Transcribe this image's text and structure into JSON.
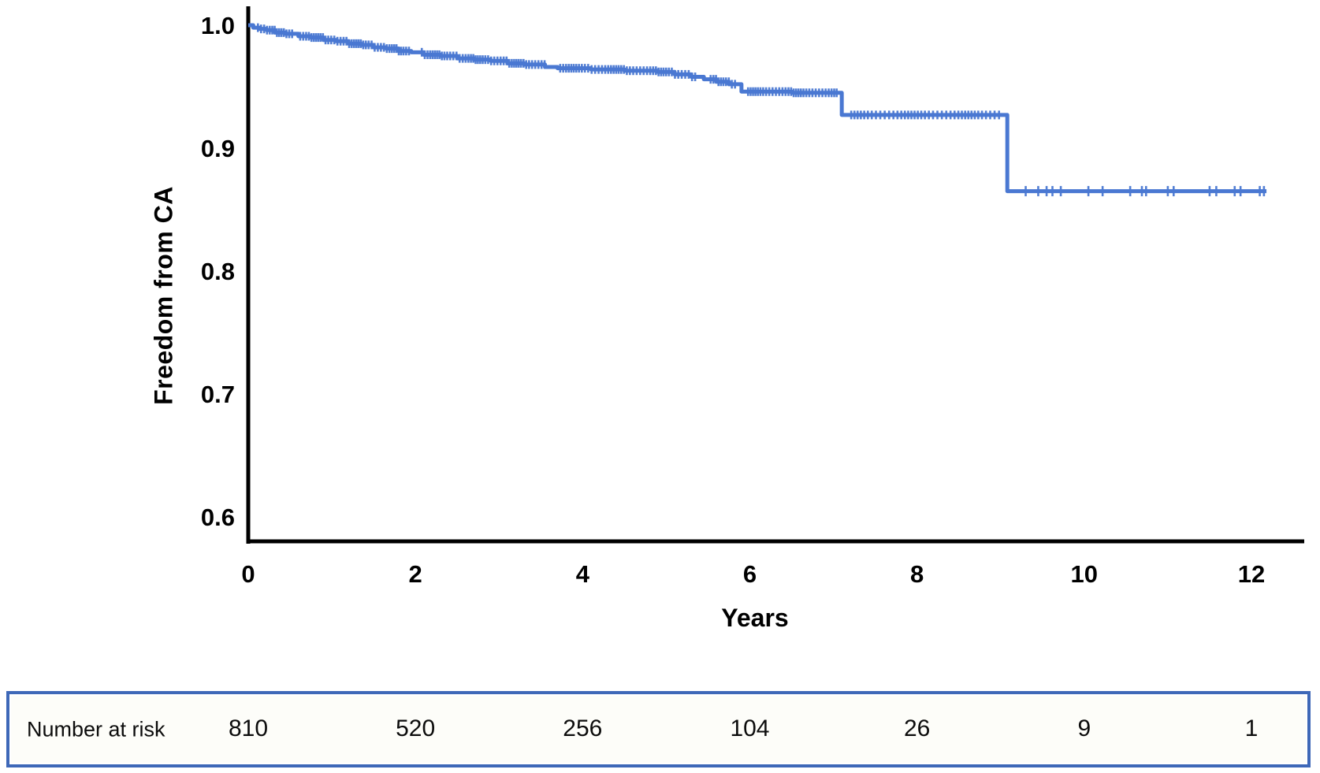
{
  "chart_data": {
    "type": "line",
    "subtype": "kaplan-meier-step-curve",
    "title": "",
    "xlabel": "Years",
    "ylabel": "Freedom from CA",
    "xlim": [
      0,
      12.7
    ],
    "ylim": [
      0.58,
      1.01
    ],
    "grid": false,
    "legend": null,
    "axis_color": "#000000",
    "curve_color": "#4a78d2",
    "xticks": [
      {
        "value": 0,
        "label": "0"
      },
      {
        "value": 2,
        "label": "2"
      },
      {
        "value": 4,
        "label": "4"
      },
      {
        "value": 6,
        "label": "6"
      },
      {
        "value": 8,
        "label": "8"
      },
      {
        "value": 10,
        "label": "10"
      },
      {
        "value": 12,
        "label": "12"
      }
    ],
    "yticks": [
      {
        "value": 1.0,
        "label": "1.0"
      },
      {
        "value": 0.9,
        "label": "0.9"
      },
      {
        "value": 0.8,
        "label": "0.8"
      },
      {
        "value": 0.7,
        "label": "0.7"
      },
      {
        "value": 0.6,
        "label": "0.6"
      }
    ],
    "km_steps": [
      [
        0.0,
        1.0
      ],
      [
        0.06,
        0.998
      ],
      [
        0.14,
        0.997
      ],
      [
        0.22,
        0.996
      ],
      [
        0.32,
        0.994
      ],
      [
        0.45,
        0.993
      ],
      [
        0.6,
        0.991
      ],
      [
        0.75,
        0.99
      ],
      [
        0.9,
        0.988
      ],
      [
        1.05,
        0.987
      ],
      [
        1.2,
        0.985
      ],
      [
        1.35,
        0.984
      ],
      [
        1.5,
        0.982
      ],
      [
        1.65,
        0.981
      ],
      [
        1.8,
        0.979
      ],
      [
        1.95,
        0.978
      ],
      [
        2.1,
        0.976
      ],
      [
        2.3,
        0.975
      ],
      [
        2.5,
        0.973
      ],
      [
        2.7,
        0.972
      ],
      [
        2.9,
        0.971
      ],
      [
        3.1,
        0.969
      ],
      [
        3.3,
        0.968
      ],
      [
        3.55,
        0.966
      ],
      [
        3.7,
        0.965
      ],
      [
        4.1,
        0.964
      ],
      [
        4.5,
        0.963
      ],
      [
        4.9,
        0.962
      ],
      [
        5.1,
        0.96
      ],
      [
        5.3,
        0.958
      ],
      [
        5.45,
        0.956
      ],
      [
        5.6,
        0.954
      ],
      [
        5.75,
        0.952
      ],
      [
        5.9,
        0.946
      ],
      [
        6.5,
        0.945
      ],
      [
        7.1,
        0.927
      ],
      [
        9.08,
        0.865
      ]
    ],
    "curve_end_time": 12.18,
    "censor_groups": [
      {
        "from": 0.1,
        "to": 0.55,
        "count": 14
      },
      {
        "from": 0.6,
        "to": 1.95,
        "count": 42
      },
      {
        "from": 2.05,
        "to": 3.55,
        "count": 46
      },
      {
        "from": 3.7,
        "to": 5.35,
        "count": 46
      },
      {
        "from": 5.5,
        "to": 5.85,
        "count": 10
      },
      {
        "from": 5.95,
        "to": 7.05,
        "count": 32
      },
      {
        "from": 7.18,
        "to": 9.0,
        "count": 40
      }
    ],
    "censor_times_late": [
      9.3,
      9.45,
      9.55,
      9.62,
      9.72,
      10.05,
      10.22,
      10.55,
      10.69,
      10.74,
      11.0,
      11.07,
      11.5,
      11.58,
      11.8,
      11.87,
      12.1,
      12.15
    ]
  },
  "risk_table": {
    "label": "Number at risk",
    "times": [
      0,
      2,
      4,
      6,
      8,
      10,
      12
    ],
    "values": [
      "810",
      "520",
      "256",
      "104",
      "26",
      "9",
      "1"
    ],
    "border_color": "#3e68b8",
    "background": "#fdfdf9"
  }
}
